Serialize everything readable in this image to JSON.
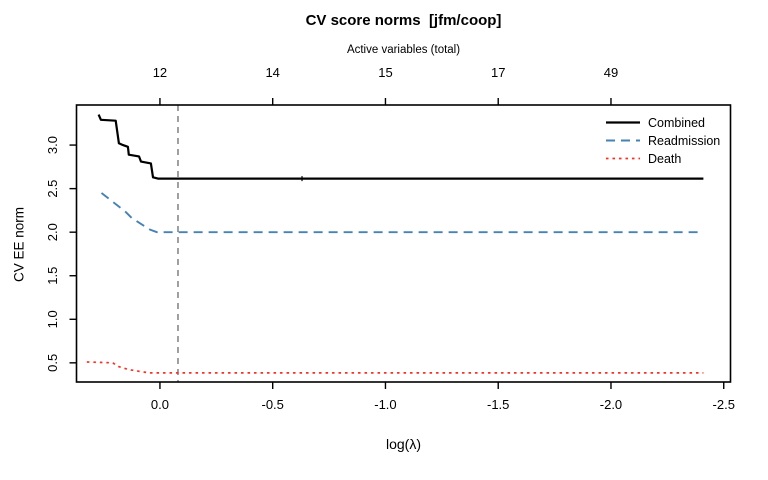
{
  "chart_data": {
    "type": "line",
    "title": "CV score norms  [jfm/coop]",
    "top_axis_label": "Active variables (total)",
    "xlabel": "log(λ)",
    "ylabel": "CV EE norm",
    "x_reversed": true,
    "xlim": [
      0.37,
      -2.53
    ],
    "ylim": [
      0.28,
      3.46
    ],
    "x_ticks": [
      0.0,
      -0.5,
      -1.0,
      -1.5,
      -2.0,
      -2.5
    ],
    "x_tick_labels": [
      "0.0",
      "-0.5",
      "-1.0",
      "-1.5",
      "-2.0",
      "-2.5"
    ],
    "y_ticks": [
      0.5,
      1.0,
      1.5,
      2.0,
      2.5,
      3.0
    ],
    "y_tick_labels": [
      "0.5",
      "1.0",
      "1.5",
      "2.0",
      "2.5",
      "3.0"
    ],
    "top_ticks": {
      "positions": [
        0.0,
        -0.5,
        -1.0,
        -1.5,
        -2.0
      ],
      "labels": [
        "12",
        "14",
        "15",
        "17",
        "49"
      ]
    },
    "vline": {
      "x": -0.08,
      "color": "#8f8f8f",
      "style": "dashed"
    },
    "series": [
      {
        "name": "Combined",
        "color": "#000000",
        "style": "solid",
        "points": [
          [
            0.272,
            3.35
          ],
          [
            0.262,
            3.29
          ],
          [
            0.196,
            3.28
          ],
          [
            0.182,
            3.02
          ],
          [
            0.164,
            3.0
          ],
          [
            0.142,
            2.98
          ],
          [
            0.138,
            2.89
          ],
          [
            0.093,
            2.87
          ],
          [
            0.084,
            2.81
          ],
          [
            0.04,
            2.79
          ],
          [
            0.031,
            2.63
          ],
          [
            0.009,
            2.615
          ],
          [
            -2.41,
            2.615
          ]
        ],
        "tick_marker": [
          -0.63,
          2.615
        ]
      },
      {
        "name": "Readmission",
        "color": "#4682B4",
        "style": "dashed",
        "points": [
          [
            0.259,
            2.45
          ],
          [
            0.155,
            2.24
          ],
          [
            0.124,
            2.16
          ],
          [
            0.044,
            2.03
          ],
          [
            0.013,
            2.0
          ],
          [
            -2.41,
            2.0
          ]
        ]
      },
      {
        "name": "Death",
        "color": "#ff2d1e",
        "style": "dotted",
        "points": [
          [
            0.324,
            0.51
          ],
          [
            0.209,
            0.5
          ],
          [
            0.187,
            0.46
          ],
          [
            0.142,
            0.425
          ],
          [
            0.089,
            0.4
          ],
          [
            0.044,
            0.385
          ],
          [
            -2.41,
            0.385
          ]
        ]
      }
    ],
    "legend": {
      "position": "top-right"
    }
  }
}
